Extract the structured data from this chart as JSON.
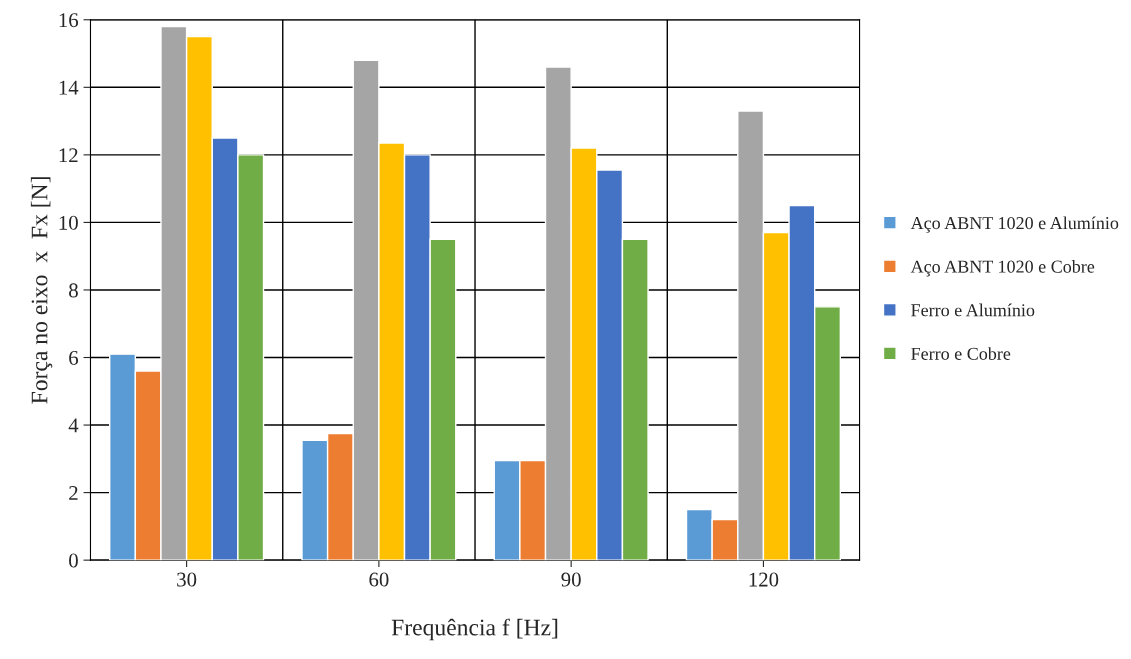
{
  "chart_data": {
    "type": "bar",
    "xlabel": "Frequência f [Hz]",
    "ylabel": "Força no eixo  x  Fx [N]",
    "categories": [
      "30",
      "60",
      "90",
      "120"
    ],
    "series": [
      {
        "name": "Aço ABNT 1020 e Alumínio",
        "color": "#5b9bd5",
        "values": [
          6.1,
          3.55,
          2.95,
          1.5
        ]
      },
      {
        "name": "Aço ABNT 1020 e Cobre",
        "color": "#ed7d31",
        "values": [
          5.6,
          3.75,
          2.95,
          1.2
        ]
      },
      {
        "color": "#a5a5a5",
        "values": [
          15.8,
          14.8,
          14.6,
          13.3
        ]
      },
      {
        "color": "#ffc000",
        "values": [
          15.5,
          12.35,
          12.2,
          9.7
        ]
      },
      {
        "name": "Ferro e Alumínio",
        "color": "#4472c4",
        "values": [
          12.5,
          12.0,
          11.55,
          10.5
        ]
      },
      {
        "name": "Ferro e Cobre",
        "color": "#70ad47",
        "values": [
          12.0,
          9.5,
          9.5,
          7.5
        ]
      }
    ],
    "ylim": [
      0,
      16
    ],
    "yticks": [
      0,
      2,
      4,
      6,
      8,
      10,
      12,
      14,
      16
    ],
    "grid": true,
    "legend": "right"
  }
}
